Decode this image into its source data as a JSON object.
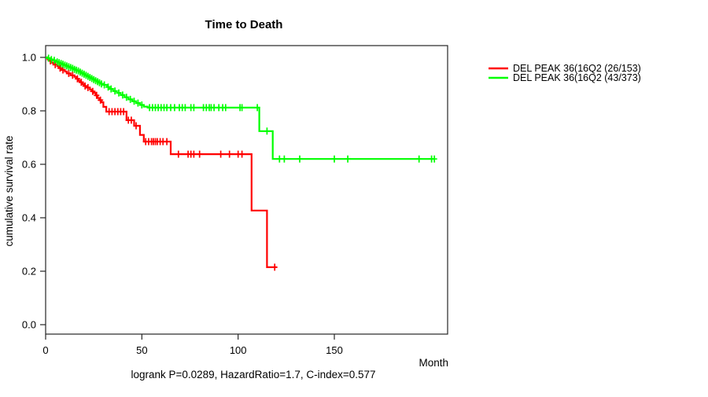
{
  "chart_data": {
    "type": "line",
    "subtype": "kaplan-meier-step-curves",
    "title": "Time to Death",
    "xlabel": "Month",
    "ylabel": "cumulative survival rate",
    "footer": "logrank P=0.0289, HazardRatio=1.7, C-index=0.577",
    "xlim": [
      0,
      209
    ],
    "ylim": [
      0.0,
      1.0
    ],
    "xticks": [
      0,
      50,
      100,
      150
    ],
    "yticks": [
      "0.0",
      "0.2",
      "0.4",
      "0.6",
      "0.8",
      "1.0"
    ],
    "grid": false,
    "legend_position": "right-outside",
    "colors": {
      "series_red": "#ff0000",
      "series_green": "#00ff00",
      "axis": "#262626"
    },
    "series": [
      {
        "name": "DEL PEAK 36(16Q2 (26/153)",
        "color": "#ff0000",
        "end_month": 120,
        "steps": [
          [
            0,
            1.0
          ],
          [
            1,
            0.993
          ],
          [
            2,
            0.987
          ],
          [
            3,
            0.98
          ],
          [
            4,
            0.973
          ],
          [
            6,
            0.967
          ],
          [
            7,
            0.96
          ],
          [
            8,
            0.953
          ],
          [
            10,
            0.947
          ],
          [
            11,
            0.94
          ],
          [
            13,
            0.933
          ],
          [
            15,
            0.927
          ],
          [
            16,
            0.92
          ],
          [
            17,
            0.913
          ],
          [
            18,
            0.907
          ],
          [
            19,
            0.9
          ],
          [
            20,
            0.893
          ],
          [
            21,
            0.887
          ],
          [
            23,
            0.88
          ],
          [
            24,
            0.873
          ],
          [
            25,
            0.867
          ],
          [
            26,
            0.858
          ],
          [
            27,
            0.848
          ],
          [
            28,
            0.84
          ],
          [
            29,
            0.832
          ],
          [
            30,
            0.815
          ],
          [
            31.5,
            0.797
          ],
          [
            42,
            0.765
          ],
          [
            46,
            0.744
          ],
          [
            49,
            0.71
          ],
          [
            51,
            0.685
          ],
          [
            65,
            0.638
          ],
          [
            107,
            0.427
          ],
          [
            115,
            0.215
          ]
        ],
        "censor_marks": [
          [
            2.5,
            0.987
          ],
          [
            5,
            0.973
          ],
          [
            7.5,
            0.96
          ],
          [
            9,
            0.953
          ],
          [
            12,
            0.94
          ],
          [
            14,
            0.933
          ],
          [
            16.5,
            0.92
          ],
          [
            18.5,
            0.907
          ],
          [
            20.5,
            0.893
          ],
          [
            22,
            0.887
          ],
          [
            24.5,
            0.873
          ],
          [
            26.5,
            0.858
          ],
          [
            28.5,
            0.84
          ],
          [
            33,
            0.797
          ],
          [
            34.5,
            0.797
          ],
          [
            36,
            0.797
          ],
          [
            37.5,
            0.797
          ],
          [
            39,
            0.797
          ],
          [
            40.5,
            0.797
          ],
          [
            43,
            0.765
          ],
          [
            44.5,
            0.765
          ],
          [
            47,
            0.744
          ],
          [
            52,
            0.685
          ],
          [
            53.5,
            0.685
          ],
          [
            55,
            0.685
          ],
          [
            56,
            0.685
          ],
          [
            57,
            0.685
          ],
          [
            58,
            0.685
          ],
          [
            59.5,
            0.685
          ],
          [
            61,
            0.685
          ],
          [
            63,
            0.685
          ],
          [
            69,
            0.638
          ],
          [
            74,
            0.638
          ],
          [
            75.5,
            0.638
          ],
          [
            77,
            0.638
          ],
          [
            80,
            0.638
          ],
          [
            91,
            0.638
          ],
          [
            95.5,
            0.638
          ],
          [
            100,
            0.638
          ],
          [
            102,
            0.638
          ],
          [
            119,
            0.215
          ]
        ]
      },
      {
        "name": "DEL PEAK 36(16Q2 (43/373)",
        "color": "#00ff00",
        "end_month": 202,
        "steps": [
          [
            0,
            1.0
          ],
          [
            1,
            0.997
          ],
          [
            2,
            0.995
          ],
          [
            3,
            0.992
          ],
          [
            4,
            0.989
          ],
          [
            5,
            0.986
          ],
          [
            6,
            0.983
          ],
          [
            7,
            0.98
          ],
          [
            8,
            0.977
          ],
          [
            9,
            0.974
          ],
          [
            10,
            0.971
          ],
          [
            11,
            0.968
          ],
          [
            12,
            0.965
          ],
          [
            13,
            0.962
          ],
          [
            14,
            0.959
          ],
          [
            15,
            0.955
          ],
          [
            16,
            0.952
          ],
          [
            17,
            0.949
          ],
          [
            18,
            0.945
          ],
          [
            19,
            0.941
          ],
          [
            20,
            0.937
          ],
          [
            21,
            0.933
          ],
          [
            22,
            0.929
          ],
          [
            23,
            0.925
          ],
          [
            24,
            0.921
          ],
          [
            25,
            0.917
          ],
          [
            26,
            0.913
          ],
          [
            27,
            0.909
          ],
          [
            28,
            0.905
          ],
          [
            29,
            0.901
          ],
          [
            30,
            0.897
          ],
          [
            32,
            0.889
          ],
          [
            33,
            0.882
          ],
          [
            35,
            0.874
          ],
          [
            37,
            0.867
          ],
          [
            39,
            0.859
          ],
          [
            41,
            0.851
          ],
          [
            43,
            0.843
          ],
          [
            45,
            0.836
          ],
          [
            47,
            0.829
          ],
          [
            49,
            0.822
          ],
          [
            51,
            0.816
          ],
          [
            53,
            0.812
          ],
          [
            111,
            0.724
          ],
          [
            118,
            0.62
          ]
        ],
        "censor_marks": [
          [
            1.5,
            0.997
          ],
          [
            3,
            0.992
          ],
          [
            4.5,
            0.989
          ],
          [
            6,
            0.983
          ],
          [
            7,
            0.98
          ],
          [
            8,
            0.977
          ],
          [
            9,
            0.974
          ],
          [
            10,
            0.971
          ],
          [
            11,
            0.968
          ],
          [
            12,
            0.965
          ],
          [
            13,
            0.962
          ],
          [
            14,
            0.959
          ],
          [
            15,
            0.955
          ],
          [
            16,
            0.952
          ],
          [
            17,
            0.949
          ],
          [
            18,
            0.945
          ],
          [
            19,
            0.941
          ],
          [
            20,
            0.937
          ],
          [
            21,
            0.933
          ],
          [
            22,
            0.929
          ],
          [
            23,
            0.925
          ],
          [
            24,
            0.921
          ],
          [
            25,
            0.917
          ],
          [
            26,
            0.913
          ],
          [
            27,
            0.909
          ],
          [
            28,
            0.905
          ],
          [
            29,
            0.901
          ],
          [
            30.5,
            0.897
          ],
          [
            32.5,
            0.889
          ],
          [
            34,
            0.882
          ],
          [
            36,
            0.874
          ],
          [
            38,
            0.867
          ],
          [
            40,
            0.859
          ],
          [
            42,
            0.851
          ],
          [
            44,
            0.843
          ],
          [
            46,
            0.836
          ],
          [
            48,
            0.829
          ],
          [
            50,
            0.822
          ],
          [
            54,
            0.812
          ],
          [
            55.5,
            0.812
          ],
          [
            57,
            0.812
          ],
          [
            58.5,
            0.812
          ],
          [
            60,
            0.812
          ],
          [
            61.5,
            0.812
          ],
          [
            63,
            0.812
          ],
          [
            65,
            0.812
          ],
          [
            67,
            0.812
          ],
          [
            69.5,
            0.812
          ],
          [
            71,
            0.812
          ],
          [
            72.5,
            0.812
          ],
          [
            75.5,
            0.812
          ],
          [
            77,
            0.812
          ],
          [
            82,
            0.812
          ],
          [
            83.5,
            0.812
          ],
          [
            85,
            0.812
          ],
          [
            86,
            0.812
          ],
          [
            87.5,
            0.812
          ],
          [
            90,
            0.812
          ],
          [
            92,
            0.812
          ],
          [
            93.5,
            0.812
          ],
          [
            101,
            0.812
          ],
          [
            102,
            0.812
          ],
          [
            110,
            0.812
          ],
          [
            115,
            0.724
          ],
          [
            121.5,
            0.62
          ],
          [
            124,
            0.62
          ],
          [
            132,
            0.62
          ],
          [
            150,
            0.62
          ],
          [
            157,
            0.62
          ],
          [
            194,
            0.62
          ],
          [
            200.5,
            0.62
          ],
          [
            202,
            0.62
          ]
        ]
      }
    ]
  }
}
